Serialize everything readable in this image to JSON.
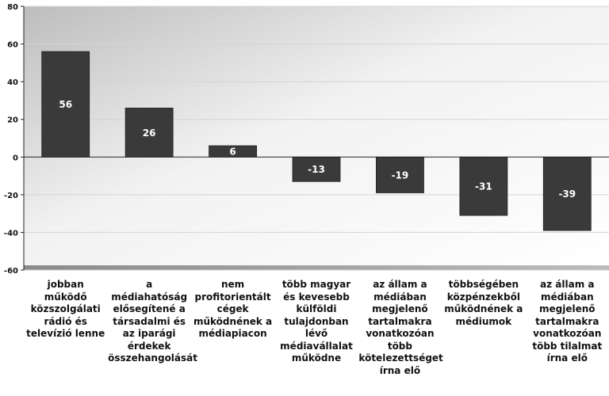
{
  "chart_data": {
    "type": "bar",
    "title": "",
    "xlabel": "",
    "ylabel": "",
    "ylim": [
      -60,
      80
    ],
    "yticks": [
      -60,
      -40,
      -20,
      0,
      20,
      40,
      60,
      80
    ],
    "grid": true,
    "legend": "none",
    "categories": [
      "jobban működő közszolgálati rádió és televízió lenne",
      "a médiahatóság elősegítené a társadalmi és az iparági érdekek összehangolását",
      "nem profitorientált cégek működnének a médiapiacon",
      "több magyar és kevesebb külföldi tulajdonban lévő médiavállalat működne",
      "az állam a médiában megjelenő tartalmakra vonatkozóan több kötelezettséget írna elő",
      "többségében közpénzekből működnének a médiumok",
      "az állam a médiában megjelenő tartalmakra vonatkozóan több tilalmat írna elő"
    ],
    "values": [
      56,
      26,
      6,
      -13,
      -19,
      -31,
      -39
    ],
    "colors": {
      "bar": "#3a3a3a",
      "bar_label": "#ffffff",
      "axis": "#222222",
      "gridline": "#d4d4d4"
    }
  }
}
